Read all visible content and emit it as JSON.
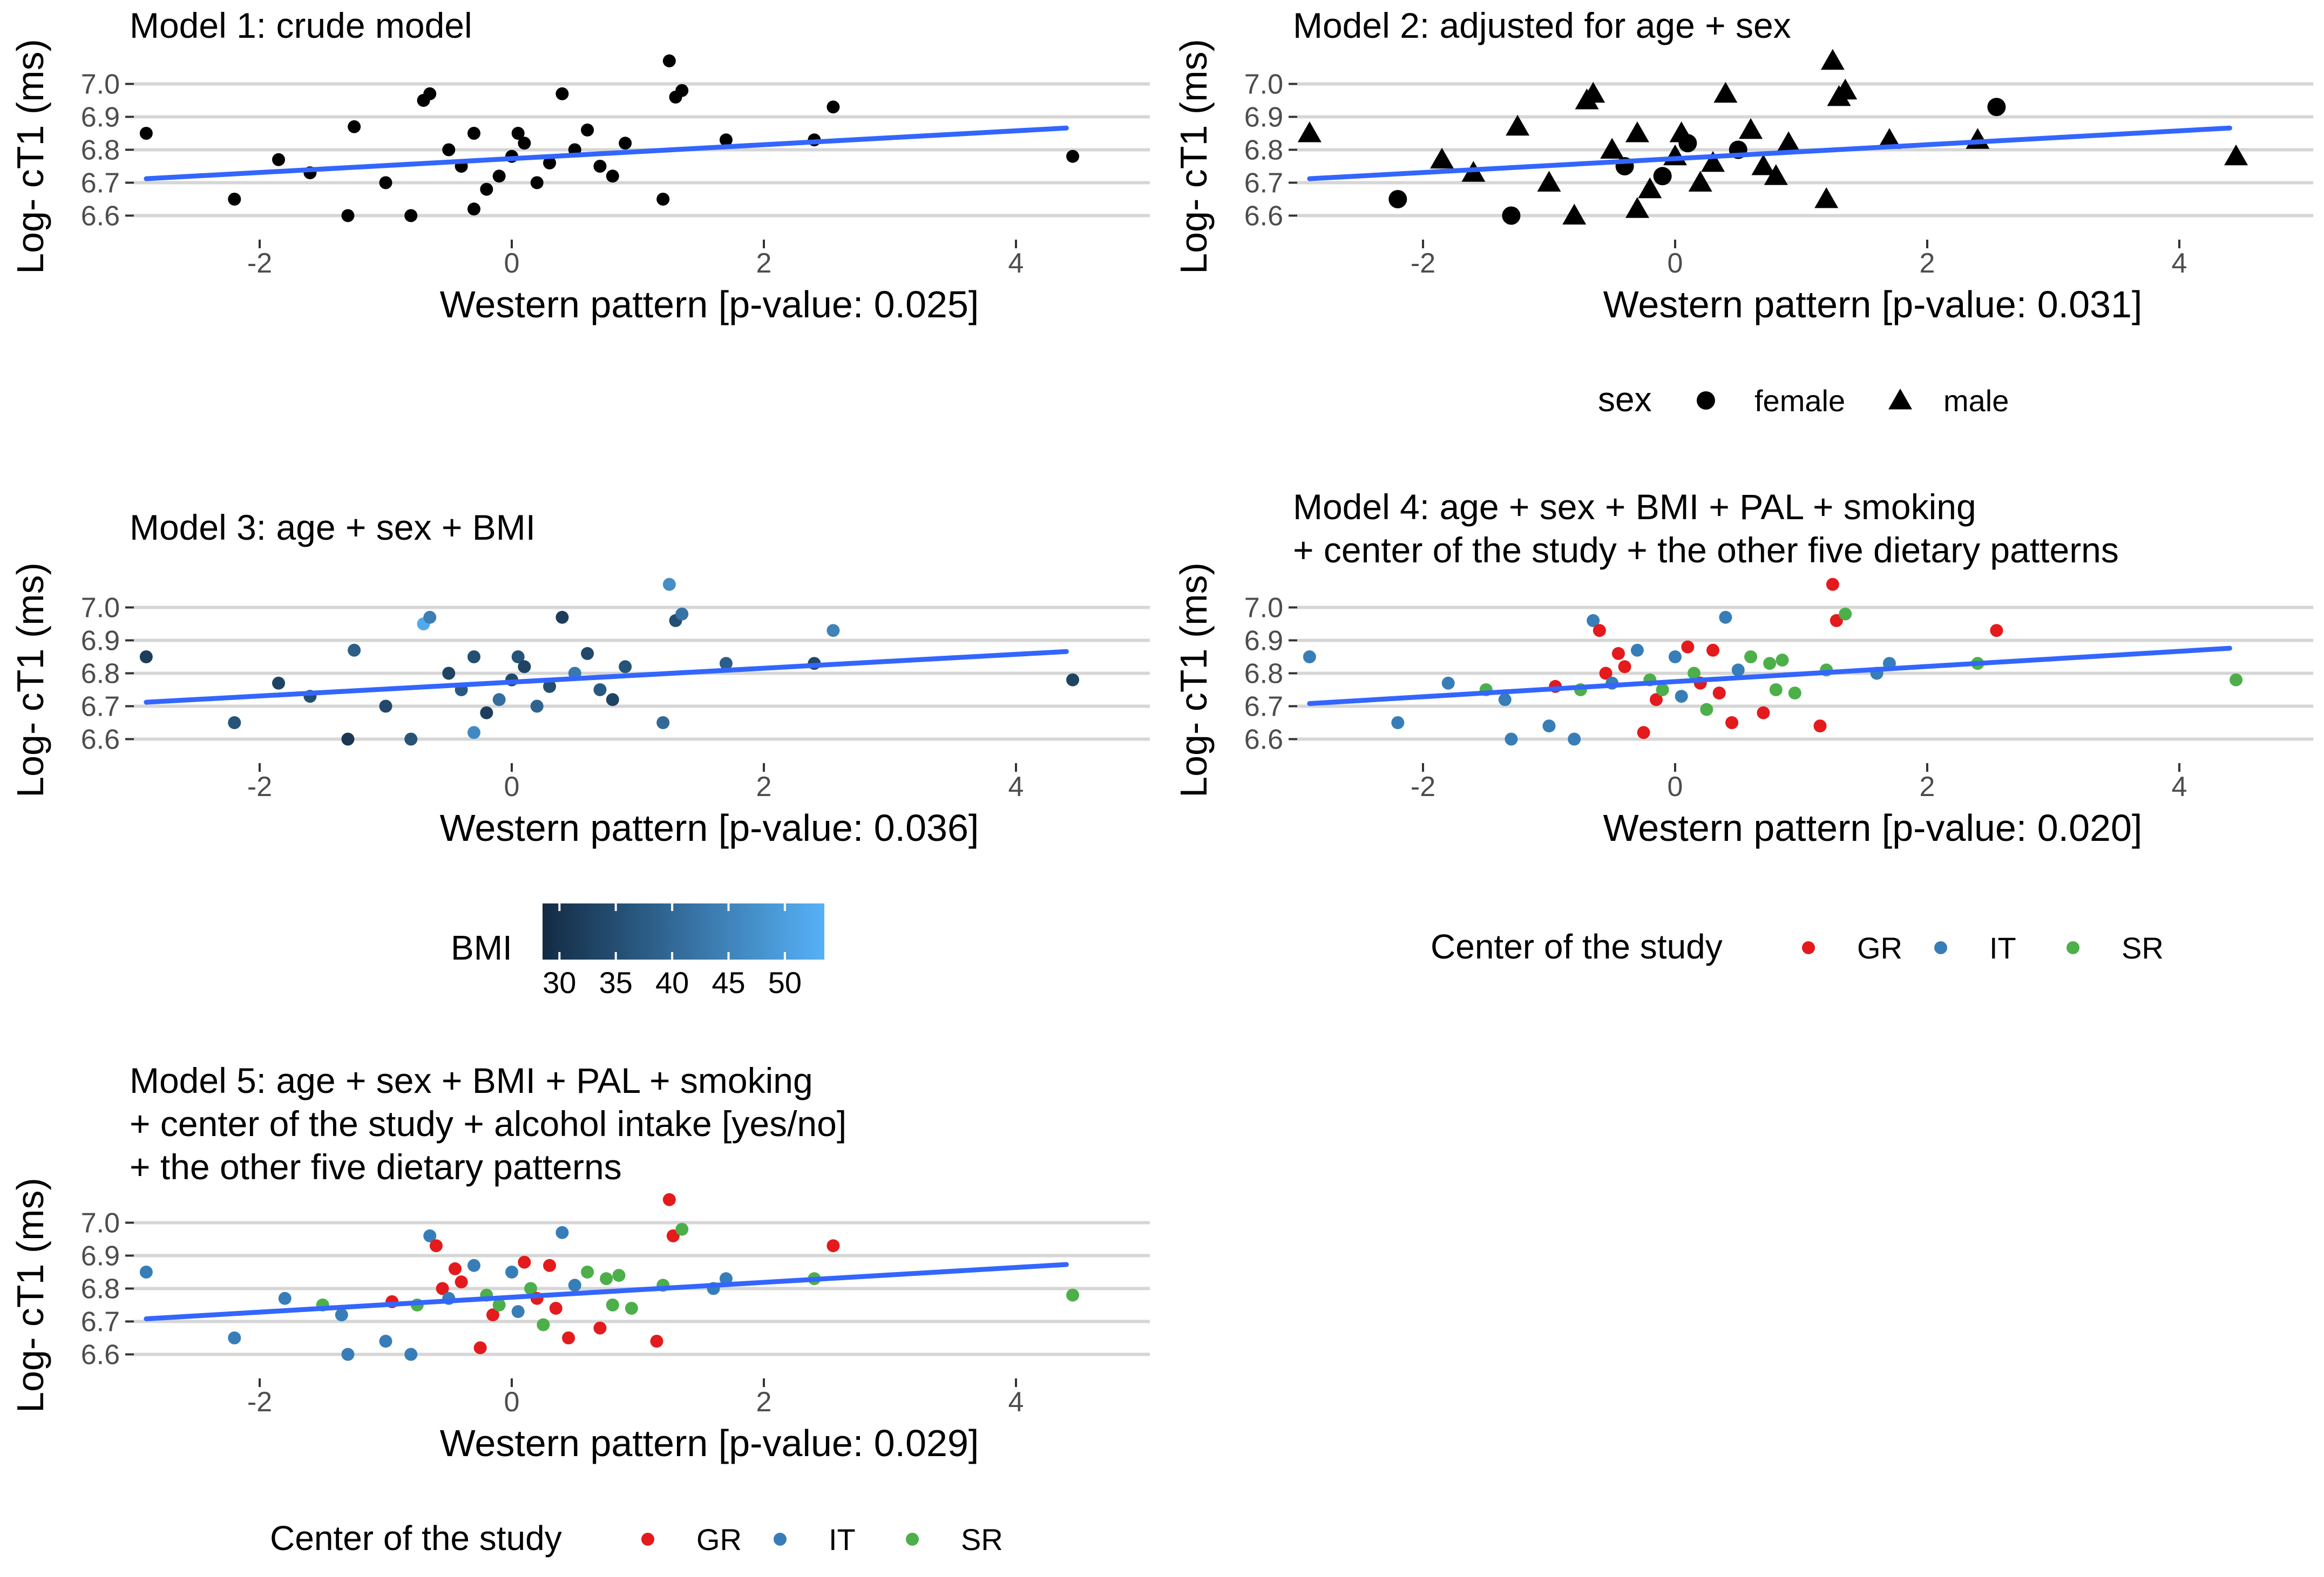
{
  "figure": {
    "common": {
      "xlim": [
        -3.3,
        4.9
      ],
      "ylim": [
        6.55,
        7.08
      ],
      "xticks": [
        -2,
        0,
        2,
        4
      ],
      "yticks": [
        6.6,
        6.7,
        6.8,
        6.9,
        7.0
      ],
      "ytick_labels": [
        "6.6",
        "6.7",
        "6.8",
        "6.9",
        "7.0"
      ],
      "ylabel": "Log- cT1 (ms)",
      "grid": true,
      "fit_color": "#3366ff"
    },
    "colors": {
      "GR": "#e41a1c",
      "IT": "#377eb8",
      "SR": "#4daf4a",
      "black": "#000000"
    }
  },
  "chart_data": [
    {
      "type": "scatter",
      "title": "Model 1: crude model",
      "title_lines": [
        "Model 1: crude model"
      ],
      "xlabel": "Western pattern [p-value: 0.025]",
      "ylabel": "Log- cT1 (ms)",
      "xlim": [
        -3.3,
        4.9
      ],
      "ylim": [
        6.55,
        7.08
      ],
      "mapping": "none",
      "fit": {
        "x": [
          -2.9,
          4.4
        ],
        "y": [
          6.712,
          6.866
        ]
      },
      "points": [
        [
          -2.9,
          6.85
        ],
        [
          -2.2,
          6.65
        ],
        [
          -1.85,
          6.77
        ],
        [
          -1.6,
          6.73
        ],
        [
          -1.3,
          6.6
        ],
        [
          -1.25,
          6.87
        ],
        [
          -1.0,
          6.7
        ],
        [
          -0.8,
          6.6
        ],
        [
          -0.7,
          6.95
        ],
        [
          -0.65,
          6.97
        ],
        [
          -0.5,
          6.8
        ],
        [
          -0.4,
          6.75
        ],
        [
          -0.3,
          6.85
        ],
        [
          -0.3,
          6.62
        ],
        [
          -0.2,
          6.68
        ],
        [
          -0.1,
          6.72
        ],
        [
          0.0,
          6.78
        ],
        [
          0.05,
          6.85
        ],
        [
          0.1,
          6.82
        ],
        [
          0.2,
          6.7
        ],
        [
          0.3,
          6.76
        ],
        [
          0.4,
          6.97
        ],
        [
          0.5,
          6.8
        ],
        [
          0.6,
          6.86
        ],
        [
          0.7,
          6.75
        ],
        [
          0.8,
          6.72
        ],
        [
          0.9,
          6.82
        ],
        [
          1.2,
          6.65
        ],
        [
          1.25,
          7.07
        ],
        [
          1.3,
          6.96
        ],
        [
          1.35,
          6.98
        ],
        [
          1.7,
          6.83
        ],
        [
          2.4,
          6.83
        ],
        [
          2.55,
          6.93
        ],
        [
          4.45,
          6.78
        ]
      ],
      "legend": null
    },
    {
      "type": "scatter",
      "title": "Model 2: adjusted for age + sex",
      "title_lines": [
        "Model 2: adjusted for age + sex"
      ],
      "xlabel": "Western pattern [p-value: 0.031]",
      "ylabel": "Log- cT1 (ms)",
      "xlim": [
        -3.3,
        4.9
      ],
      "ylim": [
        6.55,
        7.08
      ],
      "mapping": "shape",
      "fit": {
        "x": [
          -2.9,
          4.4
        ],
        "y": [
          6.712,
          6.866
        ]
      },
      "points": [
        [
          -2.9,
          6.85,
          "male"
        ],
        [
          -2.2,
          6.65,
          "female"
        ],
        [
          -1.85,
          6.77,
          "male"
        ],
        [
          -1.6,
          6.73,
          "male"
        ],
        [
          -1.3,
          6.6,
          "female"
        ],
        [
          -1.25,
          6.87,
          "male"
        ],
        [
          -1.0,
          6.7,
          "male"
        ],
        [
          -0.8,
          6.6,
          "male"
        ],
        [
          -0.7,
          6.95,
          "male"
        ],
        [
          -0.65,
          6.97,
          "male"
        ],
        [
          -0.5,
          6.8,
          "male"
        ],
        [
          -0.4,
          6.75,
          "female"
        ],
        [
          -0.3,
          6.85,
          "male"
        ],
        [
          -0.3,
          6.62,
          "male"
        ],
        [
          -0.2,
          6.68,
          "male"
        ],
        [
          -0.1,
          6.72,
          "female"
        ],
        [
          0.0,
          6.78,
          "male"
        ],
        [
          0.05,
          6.85,
          "male"
        ],
        [
          0.1,
          6.82,
          "female"
        ],
        [
          0.2,
          6.7,
          "male"
        ],
        [
          0.3,
          6.76,
          "male"
        ],
        [
          0.4,
          6.97,
          "male"
        ],
        [
          0.5,
          6.8,
          "female"
        ],
        [
          0.6,
          6.86,
          "male"
        ],
        [
          0.7,
          6.75,
          "male"
        ],
        [
          0.8,
          6.72,
          "male"
        ],
        [
          0.9,
          6.82,
          "male"
        ],
        [
          1.2,
          6.65,
          "male"
        ],
        [
          1.25,
          7.07,
          "male"
        ],
        [
          1.3,
          6.96,
          "male"
        ],
        [
          1.35,
          6.98,
          "male"
        ],
        [
          1.7,
          6.83,
          "male"
        ],
        [
          2.4,
          6.83,
          "male"
        ],
        [
          2.55,
          6.93,
          "female"
        ],
        [
          4.45,
          6.78,
          "male"
        ]
      ],
      "legend": {
        "kind": "shape",
        "title": "sex",
        "items": [
          {
            "label": "female",
            "shape": "circle"
          },
          {
            "label": "male",
            "shape": "triangle"
          }
        ]
      }
    },
    {
      "type": "scatter",
      "title": "Model 3: age + sex + BMI",
      "title_lines": [
        "Model 3: age + sex + BMI"
      ],
      "xlabel": "Western pattern [p-value: 0.036]",
      "ylabel": "Log- cT1 (ms)",
      "xlim": [
        -3.3,
        4.9
      ],
      "ylim": [
        6.55,
        7.08
      ],
      "mapping": "bmi",
      "fit": {
        "x": [
          -2.9,
          4.4
        ],
        "y": [
          6.712,
          6.866
        ]
      },
      "points": [
        [
          -2.9,
          6.85,
          32
        ],
        [
          -2.2,
          6.65,
          36
        ],
        [
          -1.85,
          6.77,
          33
        ],
        [
          -1.6,
          6.73,
          35
        ],
        [
          -1.3,
          6.6,
          31
        ],
        [
          -1.25,
          6.87,
          38
        ],
        [
          -1.0,
          6.7,
          34
        ],
        [
          -0.8,
          6.6,
          36
        ],
        [
          -0.7,
          6.95,
          52
        ],
        [
          -0.65,
          6.97,
          44
        ],
        [
          -0.5,
          6.8,
          33
        ],
        [
          -0.4,
          6.75,
          37
        ],
        [
          -0.3,
          6.85,
          35
        ],
        [
          -0.3,
          6.62,
          46
        ],
        [
          -0.2,
          6.68,
          32
        ],
        [
          -0.1,
          6.72,
          41
        ],
        [
          0.0,
          6.78,
          34
        ],
        [
          0.05,
          6.85,
          36
        ],
        [
          0.1,
          6.82,
          33
        ],
        [
          0.2,
          6.7,
          39
        ],
        [
          0.3,
          6.76,
          35
        ],
        [
          0.4,
          6.97,
          32
        ],
        [
          0.5,
          6.8,
          43
        ],
        [
          0.6,
          6.86,
          34
        ],
        [
          0.7,
          6.75,
          37
        ],
        [
          0.8,
          6.72,
          33
        ],
        [
          0.9,
          6.82,
          36
        ],
        [
          1.2,
          6.65,
          40
        ],
        [
          1.25,
          7.07,
          47
        ],
        [
          1.3,
          6.96,
          35
        ],
        [
          1.35,
          6.98,
          42
        ],
        [
          1.7,
          6.83,
          38
        ],
        [
          2.4,
          6.83,
          34
        ],
        [
          2.55,
          6.93,
          45
        ],
        [
          4.45,
          6.78,
          33
        ]
      ],
      "legend": {
        "kind": "colorbar",
        "title": "BMI",
        "ticks": [
          30,
          35,
          40,
          45,
          50
        ],
        "range": [
          28.5,
          53.5
        ],
        "colors": [
          "#132b43",
          "#56b1f7"
        ]
      }
    },
    {
      "type": "scatter",
      "title": "Model 4: age + sex + BMI + PAL + smoking + center of the study + the other five dietary patterns",
      "title_lines": [
        "Model 4: age + sex + BMI + PAL + smoking",
        "+ center of the study + the other five dietary patterns"
      ],
      "xlabel": "Western pattern [p-value: 0.020]",
      "ylabel": "Log- cT1 (ms)",
      "xlim": [
        -3.3,
        4.9
      ],
      "ylim": [
        6.55,
        7.08
      ],
      "mapping": "center",
      "fit": {
        "x": [
          -2.9,
          4.4
        ],
        "y": [
          6.708,
          6.876
        ]
      },
      "points": [
        [
          -2.9,
          6.85,
          "IT"
        ],
        [
          -2.2,
          6.65,
          "IT"
        ],
        [
          -1.8,
          6.77,
          "IT"
        ],
        [
          -1.5,
          6.75,
          "SR"
        ],
        [
          -1.35,
          6.72,
          "IT"
        ],
        [
          -1.3,
          6.6,
          "IT"
        ],
        [
          -1.0,
          6.64,
          "IT"
        ],
        [
          -0.95,
          6.76,
          "GR"
        ],
        [
          -0.8,
          6.6,
          "IT"
        ],
        [
          -0.75,
          6.75,
          "SR"
        ],
        [
          -0.65,
          6.96,
          "IT"
        ],
        [
          -0.6,
          6.93,
          "GR"
        ],
        [
          -0.55,
          6.8,
          "GR"
        ],
        [
          -0.5,
          6.77,
          "IT"
        ],
        [
          -0.45,
          6.86,
          "GR"
        ],
        [
          -0.4,
          6.82,
          "GR"
        ],
        [
          -0.3,
          6.87,
          "IT"
        ],
        [
          -0.25,
          6.62,
          "GR"
        ],
        [
          -0.2,
          6.78,
          "SR"
        ],
        [
          -0.15,
          6.72,
          "GR"
        ],
        [
          -0.1,
          6.75,
          "SR"
        ],
        [
          0.0,
          6.85,
          "IT"
        ],
        [
          0.05,
          6.73,
          "IT"
        ],
        [
          0.1,
          6.88,
          "GR"
        ],
        [
          0.15,
          6.8,
          "SR"
        ],
        [
          0.2,
          6.77,
          "GR"
        ],
        [
          0.25,
          6.69,
          "SR"
        ],
        [
          0.3,
          6.87,
          "GR"
        ],
        [
          0.35,
          6.74,
          "GR"
        ],
        [
          0.4,
          6.97,
          "IT"
        ],
        [
          0.45,
          6.65,
          "GR"
        ],
        [
          0.5,
          6.81,
          "IT"
        ],
        [
          0.6,
          6.85,
          "SR"
        ],
        [
          0.7,
          6.68,
          "GR"
        ],
        [
          0.75,
          6.83,
          "SR"
        ],
        [
          0.8,
          6.75,
          "SR"
        ],
        [
          0.85,
          6.84,
          "SR"
        ],
        [
          0.95,
          6.74,
          "SR"
        ],
        [
          1.15,
          6.64,
          "GR"
        ],
        [
          1.2,
          6.81,
          "SR"
        ],
        [
          1.25,
          7.07,
          "GR"
        ],
        [
          1.28,
          6.96,
          "GR"
        ],
        [
          1.35,
          6.98,
          "SR"
        ],
        [
          1.6,
          6.8,
          "IT"
        ],
        [
          1.7,
          6.83,
          "IT"
        ],
        [
          2.4,
          6.83,
          "SR"
        ],
        [
          2.55,
          6.93,
          "GR"
        ],
        [
          4.45,
          6.78,
          "SR"
        ]
      ],
      "legend": {
        "kind": "color",
        "title": "Center of the study",
        "items": [
          {
            "label": "GR",
            "color": "#e41a1c"
          },
          {
            "label": "IT",
            "color": "#377eb8"
          },
          {
            "label": "SR",
            "color": "#4daf4a"
          }
        ]
      }
    },
    {
      "type": "scatter",
      "title": "Model 5: age + sex + BMI + PAL + smoking + center of the study + alcohol intake [yes/no] + the other five dietary patterns",
      "title_lines": [
        "Model 5: age + sex + BMI + PAL + smoking",
        "+ center of the study + alcohol intake [yes/no]",
        "+ the other five dietary patterns"
      ],
      "xlabel": "Western pattern [p-value: 0.029]",
      "ylabel": "Log- cT1 (ms)",
      "xlim": [
        -3.3,
        4.9
      ],
      "ylim": [
        6.55,
        7.08
      ],
      "mapping": "center",
      "fit": {
        "x": [
          -2.9,
          4.4
        ],
        "y": [
          6.708,
          6.873
        ]
      },
      "points": [
        [
          -2.9,
          6.85,
          "IT"
        ],
        [
          -2.2,
          6.65,
          "IT"
        ],
        [
          -1.8,
          6.77,
          "IT"
        ],
        [
          -1.5,
          6.75,
          "SR"
        ],
        [
          -1.35,
          6.72,
          "IT"
        ],
        [
          -1.3,
          6.6,
          "IT"
        ],
        [
          -1.0,
          6.64,
          "IT"
        ],
        [
          -0.95,
          6.76,
          "GR"
        ],
        [
          -0.8,
          6.6,
          "IT"
        ],
        [
          -0.75,
          6.75,
          "SR"
        ],
        [
          -0.65,
          6.96,
          "IT"
        ],
        [
          -0.6,
          6.93,
          "GR"
        ],
        [
          -0.55,
          6.8,
          "GR"
        ],
        [
          -0.5,
          6.77,
          "IT"
        ],
        [
          -0.45,
          6.86,
          "GR"
        ],
        [
          -0.4,
          6.82,
          "GR"
        ],
        [
          -0.3,
          6.87,
          "IT"
        ],
        [
          -0.25,
          6.62,
          "GR"
        ],
        [
          -0.2,
          6.78,
          "SR"
        ],
        [
          -0.15,
          6.72,
          "GR"
        ],
        [
          -0.1,
          6.75,
          "SR"
        ],
        [
          0.0,
          6.85,
          "IT"
        ],
        [
          0.05,
          6.73,
          "IT"
        ],
        [
          0.1,
          6.88,
          "GR"
        ],
        [
          0.15,
          6.8,
          "SR"
        ],
        [
          0.2,
          6.77,
          "GR"
        ],
        [
          0.25,
          6.69,
          "SR"
        ],
        [
          0.3,
          6.87,
          "GR"
        ],
        [
          0.35,
          6.74,
          "GR"
        ],
        [
          0.4,
          6.97,
          "IT"
        ],
        [
          0.45,
          6.65,
          "GR"
        ],
        [
          0.5,
          6.81,
          "IT"
        ],
        [
          0.6,
          6.85,
          "SR"
        ],
        [
          0.7,
          6.68,
          "GR"
        ],
        [
          0.75,
          6.83,
          "SR"
        ],
        [
          0.8,
          6.75,
          "SR"
        ],
        [
          0.85,
          6.84,
          "SR"
        ],
        [
          0.95,
          6.74,
          "SR"
        ],
        [
          1.15,
          6.64,
          "GR"
        ],
        [
          1.2,
          6.81,
          "SR"
        ],
        [
          1.25,
          7.07,
          "GR"
        ],
        [
          1.28,
          6.96,
          "GR"
        ],
        [
          1.35,
          6.98,
          "SR"
        ],
        [
          1.6,
          6.8,
          "IT"
        ],
        [
          1.7,
          6.83,
          "IT"
        ],
        [
          2.4,
          6.83,
          "SR"
        ],
        [
          2.55,
          6.93,
          "GR"
        ],
        [
          4.45,
          6.78,
          "SR"
        ]
      ],
      "legend": {
        "kind": "color",
        "title": "Center of the study",
        "items": [
          {
            "label": "GR",
            "color": "#e41a1c"
          },
          {
            "label": "IT",
            "color": "#377eb8"
          },
          {
            "label": "SR",
            "color": "#4daf4a"
          }
        ]
      }
    }
  ]
}
